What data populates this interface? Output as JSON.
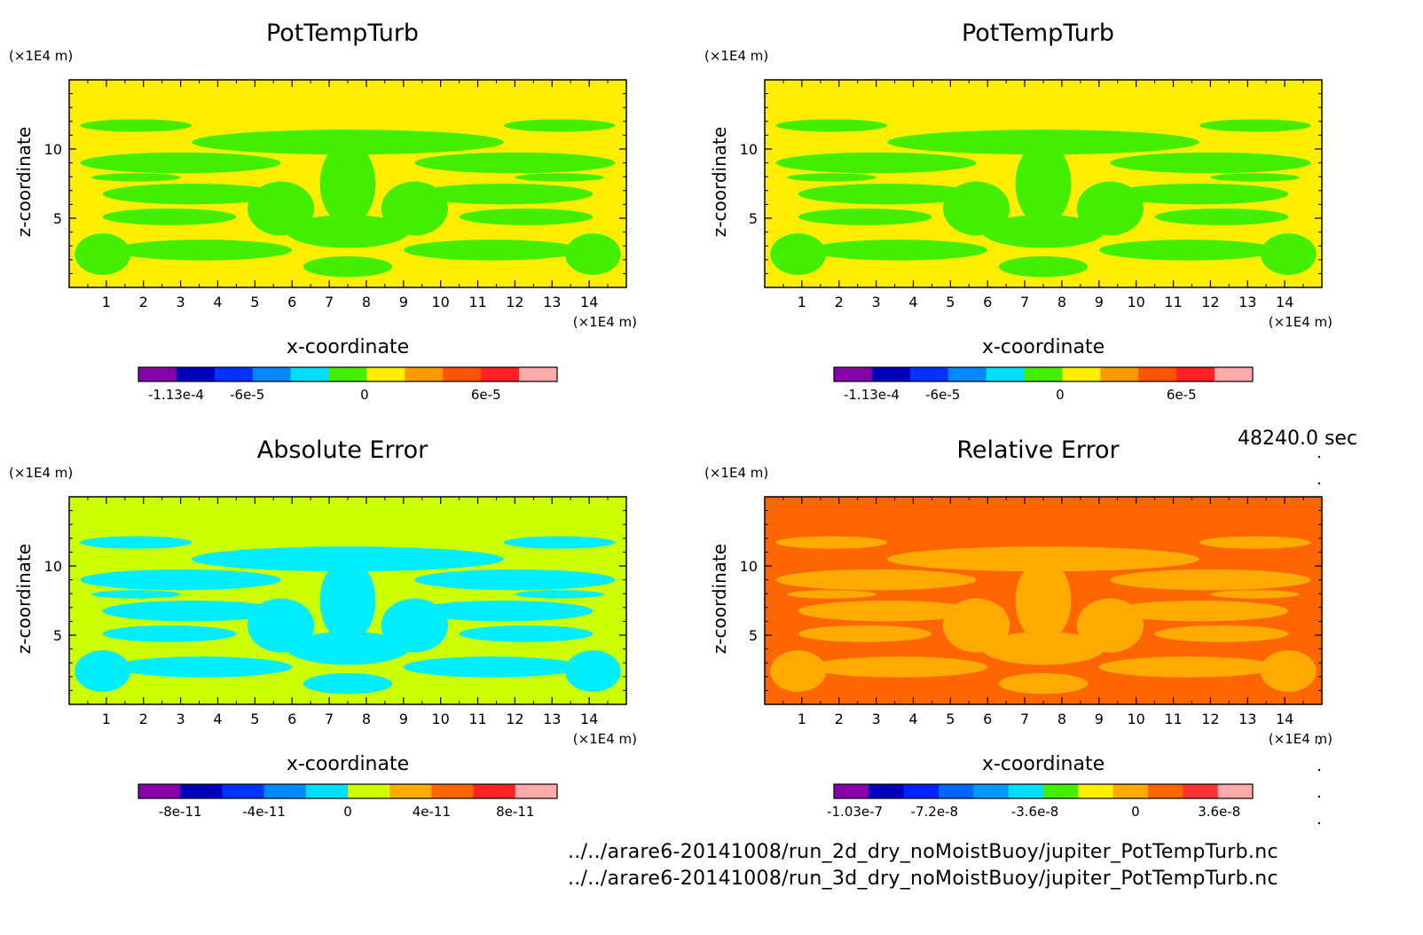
{
  "time_label": "48240.0 sec",
  "file_paths": [
    "../../arare6-20141008/run_2d_dry_noMoistBuoy/jupiter_PotTempTurb.nc",
    "../../arare6-20141008/run_3d_dry_noMoistBuoy/jupiter_PotTempTurb.nc"
  ],
  "chart_data": [
    {
      "type": "heatmap",
      "title": "PotTempTurb",
      "xlabel": "x-coordinate",
      "ylabel": "z-coordinate",
      "x_unit": "(×1E4 m)",
      "y_unit": "(×1E4 m)",
      "xlim": [
        0,
        15
      ],
      "ylim": [
        0,
        15
      ],
      "x_ticks": [
        1,
        2,
        3,
        4,
        5,
        6,
        7,
        8,
        9,
        10,
        11,
        12,
        13,
        14
      ],
      "y_ticks": [
        5,
        10
      ],
      "background_color": "#ffee00",
      "pattern_color": "#44ee00",
      "colorbar": {
        "colors": [
          "#8800aa",
          "#0000bb",
          "#0033ff",
          "#0088ff",
          "#00ddff",
          "#44ee00",
          "#ffee00",
          "#ff9900",
          "#ff5500",
          "#ff2222",
          "#ffaaaa"
        ],
        "tick_labels": [
          "-1.13e-4",
          "-6e-5",
          "0",
          "6e-5"
        ],
        "tick_fracs": [
          0.09,
          0.26,
          0.54,
          0.83
        ]
      }
    },
    {
      "type": "heatmap",
      "title": "PotTempTurb",
      "xlabel": "x-coordinate",
      "ylabel": "z-coordinate",
      "x_unit": "(×1E4 m)",
      "y_unit": "(×1E4 m)",
      "xlim": [
        0,
        15
      ],
      "ylim": [
        0,
        15
      ],
      "x_ticks": [
        1,
        2,
        3,
        4,
        5,
        6,
        7,
        8,
        9,
        10,
        11,
        12,
        13,
        14
      ],
      "y_ticks": [
        5,
        10
      ],
      "background_color": "#ffee00",
      "pattern_color": "#44ee00",
      "colorbar": {
        "colors": [
          "#8800aa",
          "#0000bb",
          "#0033ff",
          "#0088ff",
          "#00ddff",
          "#44ee00",
          "#ffee00",
          "#ff9900",
          "#ff5500",
          "#ff2222",
          "#ffaaaa"
        ],
        "tick_labels": [
          "-1.13e-4",
          "-6e-5",
          "0",
          "6e-5"
        ],
        "tick_fracs": [
          0.09,
          0.26,
          0.54,
          0.83
        ]
      }
    },
    {
      "type": "heatmap",
      "title": "Absolute Error",
      "xlabel": "x-coordinate",
      "ylabel": "z-coordinate",
      "x_unit": "(×1E4 m)",
      "y_unit": "(×1E4 m)",
      "xlim": [
        0,
        15
      ],
      "ylim": [
        0,
        15
      ],
      "x_ticks": [
        1,
        2,
        3,
        4,
        5,
        6,
        7,
        8,
        9,
        10,
        11,
        12,
        13,
        14
      ],
      "y_ticks": [
        5,
        10
      ],
      "background_color": "#ccff00",
      "pattern_color": "#00eeff",
      "colorbar": {
        "colors": [
          "#8800aa",
          "#0000bb",
          "#0033ff",
          "#0088ff",
          "#00ddff",
          "#ccff00",
          "#ffaa00",
          "#ff6600",
          "#ff2222",
          "#ffaaaa"
        ],
        "tick_labels": [
          "-8e-11",
          "-4e-11",
          "0",
          "4e-11",
          "8e-11"
        ],
        "tick_fracs": [
          0.1,
          0.3,
          0.5,
          0.7,
          0.9
        ]
      }
    },
    {
      "type": "heatmap",
      "title": "Relative Error",
      "xlabel": "x-coordinate",
      "ylabel": "z-coordinate",
      "x_unit": "(×1E4 m)",
      "y_unit": "(×1E4 m)",
      "xlim": [
        0,
        15
      ],
      "ylim": [
        0,
        15
      ],
      "x_ticks": [
        1,
        2,
        3,
        4,
        5,
        6,
        7,
        8,
        9,
        10,
        11,
        12,
        13,
        14
      ],
      "y_ticks": [
        5,
        10
      ],
      "background_color": "#ff6600",
      "pattern_color": "#ffaa00",
      "colorbar": {
        "colors": [
          "#8800aa",
          "#0000bb",
          "#0022ff",
          "#0066ff",
          "#0099ff",
          "#00ddff",
          "#44ee00",
          "#ffee00",
          "#ffaa00",
          "#ff6600",
          "#ff3333",
          "#ffaaaa"
        ],
        "tick_labels": [
          "-1.03e-7",
          "-7.2e-8",
          "-3.6e-8",
          "0",
          "3.6e-8"
        ],
        "tick_fracs": [
          0.05,
          0.24,
          0.48,
          0.72,
          0.92
        ]
      }
    }
  ]
}
